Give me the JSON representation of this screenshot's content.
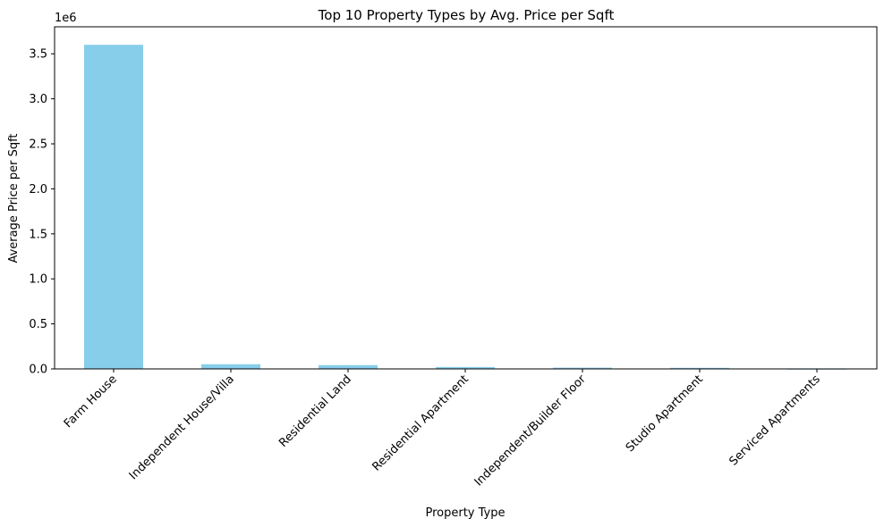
{
  "chart_data": {
    "type": "bar",
    "title": "Top 10 Property Types by Avg. Price per Sqft",
    "xlabel": "Property Type",
    "ylabel": "Average Price per Sqft",
    "y_offset_label": "1e6",
    "categories": [
      "Farm House",
      "Independent House/Villa",
      "Residential Land",
      "Residential Apartment",
      "Independent/Builder Floor",
      "Studio Apartment",
      "Serviced Apartments"
    ],
    "values": [
      3600000,
      52000,
      42000,
      21000,
      14000,
      12000,
      2000
    ],
    "ylim": [
      0,
      3800000
    ],
    "yticks": [
      0,
      500000,
      1000000,
      1500000,
      2000000,
      2500000,
      3000000,
      3500000
    ],
    "ytick_labels": [
      "0.0",
      "0.5",
      "1.0",
      "1.5",
      "2.0",
      "2.5",
      "3.0",
      "3.5"
    ],
    "bar_color": "#87CEEB",
    "grid": false,
    "legend": false
  }
}
